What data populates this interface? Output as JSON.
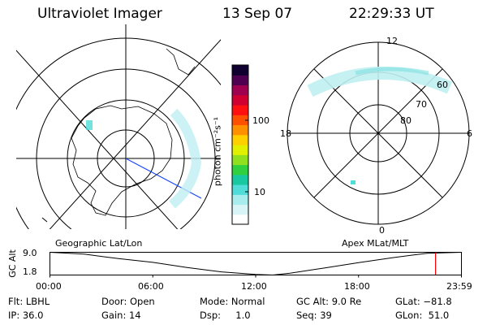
{
  "header": {
    "title": "Ultraviolet Imager",
    "date": "13 Sep 07",
    "time": "22:29:33 UT"
  },
  "left_panel": {
    "caption": "Geographic Lat/Lon",
    "icon": "south-polar-geographic-map"
  },
  "colorbar": {
    "unit_label": "photon cm⁻²s⁻¹",
    "scale": "log",
    "ticks": [
      "100",
      "10"
    ],
    "colors": [
      "#ffffff",
      "#d8f4f6",
      "#a8ecee",
      "#50dcd8",
      "#18c8a0",
      "#30d040",
      "#90e020",
      "#e0f000",
      "#ffd000",
      "#ff9000",
      "#ff5000",
      "#ff1010",
      "#d00030",
      "#a00050",
      "#500050",
      "#100030"
    ]
  },
  "right_panel": {
    "caption": "Apex  MLat/MLT",
    "mlt_labels": [
      "12",
      "6",
      "0",
      "18"
    ],
    "mlat_labels": [
      "60",
      "70",
      "80"
    ]
  },
  "chart_data": {
    "type": "line",
    "ylabel": "GC Alt",
    "ylim": [
      1.8,
      9.0
    ],
    "yticks": [
      "9.0",
      "1.8"
    ],
    "xticks": [
      "00:00",
      "06:00",
      "12:00",
      "18:00",
      "23:59"
    ],
    "x_hours": [
      0,
      2,
      4,
      6,
      8,
      10,
      12,
      13,
      14,
      16,
      18,
      20,
      22,
      24
    ],
    "series": [
      {
        "values": [
          9.0,
          8.4,
          7.0,
          5.8,
          4.2,
          2.8,
          2.0,
          1.8,
          2.4,
          4.0,
          5.7,
          7.3,
          8.7,
          9.0
        ]
      }
    ],
    "current_time_hours": 22.49,
    "marker_color": "#ff0000"
  },
  "info": {
    "row1": {
      "flt": "Flt: LBHL",
      "door": "Door: Open",
      "mode": "Mode: Normal",
      "gcalt": "GC Alt: 9.0 Re",
      "glat": "GLat: −81.8"
    },
    "row2": {
      "ip": "IP: 36.0",
      "gain": "Gain: 14",
      "dsp": "Dsp:     1.0",
      "seq": "Seq: 39",
      "glon": "GLon:  51.0"
    }
  }
}
